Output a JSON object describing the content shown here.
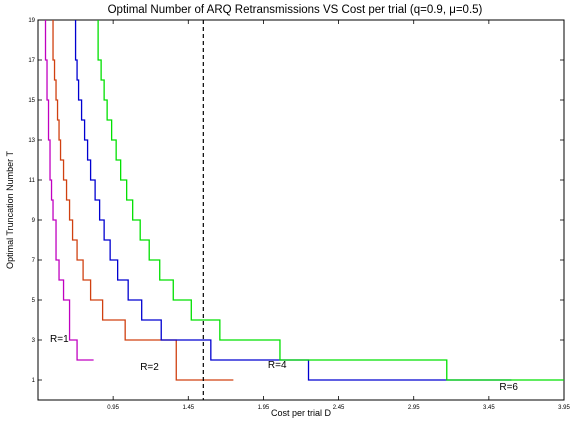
{
  "chart_data": {
    "type": "line",
    "title": "Optimal Number of ARQ Retransmissions VS Cost per trial (q=0.9, μ=0.5)",
    "xlabel": "Cost per trial D",
    "ylabel": "Optimal Truncation Number T",
    "xlim": [
      0.45,
      3.95
    ],
    "ylim": [
      0,
      19
    ],
    "grid": false,
    "x_ticks": [
      0.95,
      1.45,
      1.95,
      2.45,
      2.95,
      3.45,
      3.95
    ],
    "x_tick_labels": [
      "0.95",
      "1.45",
      "1.95",
      "2.45",
      "2.95",
      "3.45",
      "3.95"
    ],
    "y_ticks": [
      1,
      3,
      5,
      7,
      9,
      11,
      13,
      15,
      17,
      19
    ],
    "y_tick_labels": [
      "1",
      "3",
      "5",
      "7",
      "9",
      "11",
      "13",
      "15",
      "17",
      "19"
    ],
    "series": [
      {
        "name": "R=1",
        "color": "#c000c0",
        "x": [
          0.5,
          0.5,
          0.51,
          0.51,
          0.52,
          0.52,
          0.53,
          0.53,
          0.54,
          0.54,
          0.55,
          0.55,
          0.57,
          0.57,
          0.59,
          0.59,
          0.62,
          0.62,
          0.66,
          0.66,
          0.71,
          0.71,
          0.82
        ],
        "y": [
          19,
          17,
          17,
          15,
          15,
          13,
          13,
          11,
          11,
          10,
          10,
          9,
          9,
          7,
          7,
          6,
          6,
          5,
          5,
          3,
          3,
          2,
          2
        ]
      },
      {
        "name": "R=2",
        "color": "#d04010",
        "x": [
          0.55,
          0.55,
          0.56,
          0.56,
          0.57,
          0.57,
          0.58,
          0.58,
          0.59,
          0.59,
          0.6,
          0.6,
          0.62,
          0.62,
          0.64,
          0.64,
          0.66,
          0.66,
          0.68,
          0.68,
          0.71,
          0.71,
          0.75,
          0.75,
          0.8,
          0.8,
          0.88,
          0.88,
          1.03,
          1.03,
          1.37,
          1.37,
          1.75
        ],
        "y": [
          19,
          17,
          17,
          16,
          16,
          15,
          15,
          14,
          14,
          13,
          13,
          12,
          12,
          11,
          11,
          10,
          10,
          9,
          9,
          8,
          8,
          7,
          7,
          6,
          6,
          5,
          5,
          4,
          4,
          3,
          3,
          1,
          1
        ]
      },
      {
        "name": "R=4",
        "color": "#0000d0",
        "x": [
          0.7,
          0.7,
          0.71,
          0.71,
          0.72,
          0.72,
          0.74,
          0.74,
          0.76,
          0.76,
          0.78,
          0.78,
          0.8,
          0.8,
          0.83,
          0.83,
          0.86,
          0.86,
          0.89,
          0.89,
          0.93,
          0.93,
          0.98,
          0.98,
          1.05,
          1.05,
          1.14,
          1.14,
          1.27,
          1.27,
          1.6,
          1.6,
          2.25,
          2.25,
          3.6
        ],
        "y": [
          19,
          17,
          17,
          16,
          16,
          15,
          15,
          14,
          14,
          13,
          13,
          12,
          12,
          11,
          11,
          10,
          10,
          9,
          9,
          8,
          8,
          7,
          7,
          6,
          6,
          5,
          5,
          4,
          4,
          3,
          3,
          2,
          2,
          1,
          1
        ]
      },
      {
        "name": "R=6",
        "color": "#00e000",
        "x": [
          0.85,
          0.85,
          0.87,
          0.87,
          0.89,
          0.89,
          0.91,
          0.91,
          0.94,
          0.94,
          0.97,
          0.97,
          1.0,
          1.0,
          1.04,
          1.04,
          1.08,
          1.08,
          1.13,
          1.13,
          1.19,
          1.19,
          1.26,
          1.26,
          1.35,
          1.35,
          1.47,
          1.47,
          1.66,
          1.66,
          2.06,
          2.06,
          3.17,
          3.17,
          3.95
        ],
        "y": [
          19,
          17,
          17,
          16,
          16,
          15,
          15,
          14,
          14,
          13,
          13,
          12,
          12,
          11,
          11,
          10,
          10,
          9,
          9,
          8,
          8,
          7,
          7,
          6,
          6,
          5,
          5,
          4,
          4,
          3,
          3,
          2,
          2,
          1,
          1
        ]
      }
    ],
    "vline": {
      "x": 1.55,
      "style": "dashed",
      "color": "#000000"
    },
    "annotations": [
      {
        "text": "R=1",
        "x": 0.53,
        "y": 2.9
      },
      {
        "text": "R=2",
        "x": 1.13,
        "y": 1.5
      },
      {
        "text": "R=4",
        "x": 1.98,
        "y": 1.6
      },
      {
        "text": "R=6",
        "x": 3.52,
        "y": 0.5
      }
    ]
  }
}
